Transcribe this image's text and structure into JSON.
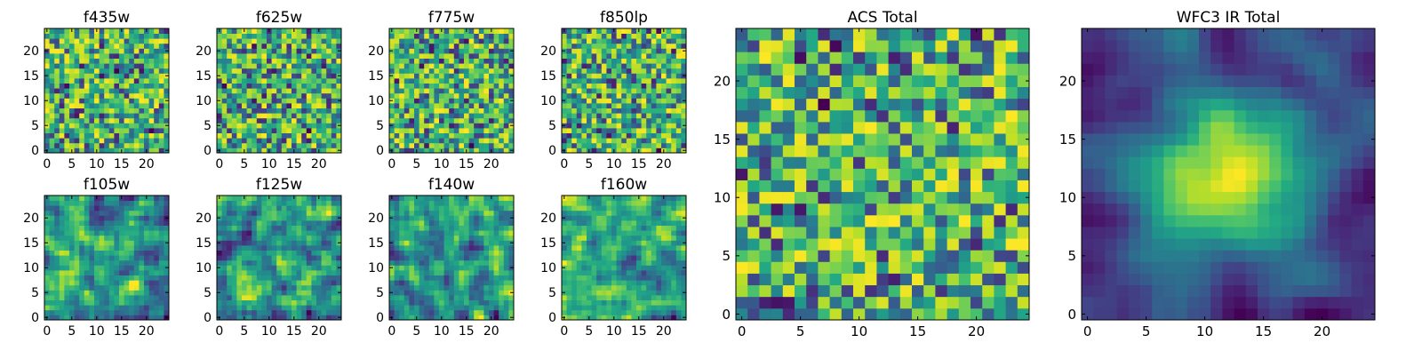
{
  "chart_data": [
    {
      "type": "heatmap",
      "title": "f435w",
      "xlim": [
        0,
        24
      ],
      "ylim": [
        0,
        24
      ],
      "xticks": [
        0,
        5,
        10,
        15,
        20
      ],
      "yticks": [
        0,
        5,
        10,
        15,
        20
      ],
      "colormap": "viridis",
      "seed": 11,
      "smooth": 0
    },
    {
      "type": "heatmap",
      "title": "f625w",
      "xlim": [
        0,
        24
      ],
      "ylim": [
        0,
        24
      ],
      "xticks": [
        0,
        5,
        10,
        15,
        20
      ],
      "yticks": [
        0,
        5,
        10,
        15,
        20
      ],
      "colormap": "viridis",
      "seed": 23,
      "smooth": 0
    },
    {
      "type": "heatmap",
      "title": "f775w",
      "xlim": [
        0,
        24
      ],
      "ylim": [
        0,
        24
      ],
      "xticks": [
        0,
        5,
        10,
        15,
        20
      ],
      "yticks": [
        0,
        5,
        10,
        15,
        20
      ],
      "colormap": "viridis",
      "seed": 37,
      "smooth": 0
    },
    {
      "type": "heatmap",
      "title": "f850lp",
      "xlim": [
        0,
        24
      ],
      "ylim": [
        0,
        24
      ],
      "xticks": [
        0,
        5,
        10,
        15,
        20
      ],
      "yticks": [
        0,
        5,
        10,
        15,
        20
      ],
      "colormap": "viridis",
      "seed": 41,
      "smooth": 0
    },
    {
      "type": "heatmap",
      "title": "f105w",
      "xlim": [
        0,
        24
      ],
      "ylim": [
        0,
        24
      ],
      "xticks": [
        0,
        5,
        10,
        15,
        20
      ],
      "yticks": [
        0,
        5,
        10,
        15,
        20
      ],
      "colormap": "viridis",
      "seed": 53,
      "smooth": 1
    },
    {
      "type": "heatmap",
      "title": "f125w",
      "xlim": [
        0,
        24
      ],
      "ylim": [
        0,
        24
      ],
      "xticks": [
        0,
        5,
        10,
        15,
        20
      ],
      "yticks": [
        0,
        5,
        10,
        15,
        20
      ],
      "colormap": "viridis",
      "seed": 67,
      "smooth": 1
    },
    {
      "type": "heatmap",
      "title": "f140w",
      "xlim": [
        0,
        24
      ],
      "ylim": [
        0,
        24
      ],
      "xticks": [
        0,
        5,
        10,
        15,
        20
      ],
      "yticks": [
        0,
        5,
        10,
        15,
        20
      ],
      "colormap": "viridis",
      "seed": 79,
      "smooth": 1
    },
    {
      "type": "heatmap",
      "title": "f160w",
      "xlim": [
        0,
        24
      ],
      "ylim": [
        0,
        24
      ],
      "xticks": [
        0,
        5,
        10,
        15,
        20
      ],
      "yticks": [
        0,
        5,
        10,
        15,
        20
      ],
      "colormap": "viridis",
      "seed": 83,
      "smooth": 1
    },
    {
      "type": "heatmap",
      "title": "ACS Total",
      "xlim": [
        0,
        24
      ],
      "ylim": [
        0,
        24
      ],
      "xticks": [
        0,
        5,
        10,
        15,
        20
      ],
      "yticks": [
        0,
        5,
        10,
        15,
        20
      ],
      "colormap": "viridis",
      "seed": 97,
      "smooth": 0
    },
    {
      "type": "heatmap",
      "title": "WFC3 IR Total",
      "xlim": [
        0,
        24
      ],
      "ylim": [
        0,
        24
      ],
      "xticks": [
        0,
        5,
        10,
        15,
        20
      ],
      "yticks": [
        0,
        5,
        10,
        15,
        20
      ],
      "colormap": "viridis",
      "seed": 101,
      "smooth": 2
    }
  ]
}
